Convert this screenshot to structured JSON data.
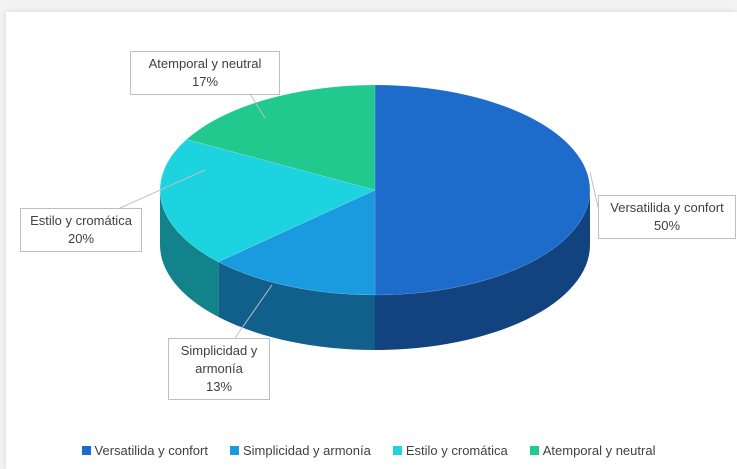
{
  "chart_data": {
    "type": "pie3d",
    "categories": [
      "Versatilida y confort",
      "Simplicidad y armonía",
      "Estilo y cromática",
      "Atemporal y neutral"
    ],
    "values": [
      50,
      13,
      20,
      17
    ],
    "value_labels": [
      "50%",
      "13%",
      "20%",
      "17%"
    ],
    "colors": [
      "#1d6ccc",
      "#1a9be0",
      "#1dd3e0",
      "#22c98e"
    ],
    "legend": "bottom"
  }
}
